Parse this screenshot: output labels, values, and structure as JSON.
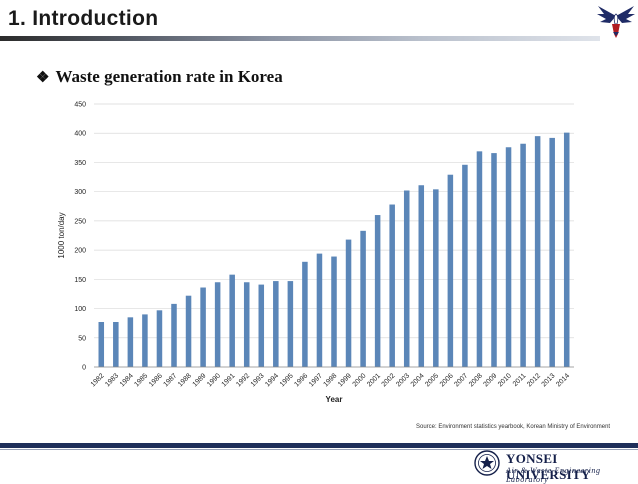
{
  "header": {
    "title": "1. Introduction",
    "logo_icon": "eagle-icon"
  },
  "bullet": {
    "glyph": "❖",
    "text": "Waste generation rate in Korea"
  },
  "chart_data": {
    "type": "bar",
    "title": "",
    "xlabel": "Year",
    "ylabel": "1000 ton/day",
    "ylim": [
      0,
      450
    ],
    "yticks": [
      0,
      50,
      100,
      150,
      200,
      250,
      300,
      350,
      400,
      450
    ],
    "grid": true,
    "bar_color": "#5b86b8",
    "categories": [
      "1982",
      "1983",
      "1984",
      "1985",
      "1986",
      "1987",
      "1988",
      "1989",
      "1990",
      "1991",
      "1992",
      "1993",
      "1994",
      "1995",
      "1996",
      "1997",
      "1998",
      "1999",
      "2000",
      "2001",
      "2002",
      "2003",
      "2004",
      "2005",
      "2006",
      "2007",
      "2008",
      "2009",
      "2010",
      "2011",
      "2012",
      "2013",
      "2014"
    ],
    "values": [
      77,
      77,
      85,
      90,
      97,
      108,
      122,
      136,
      145,
      158,
      145,
      141,
      147,
      147,
      180,
      194,
      189,
      218,
      233,
      260,
      278,
      302,
      311,
      304,
      329,
      346,
      369,
      366,
      376,
      382,
      395,
      392,
      401
    ]
  },
  "source": "Source: Environment statistics yearbook, Korean Ministry of Environment",
  "footer": {
    "university": "YONSEI UNIVERSITY",
    "lab": "Air & Waste Engineering Laboratory",
    "seal_icon": "university-seal-icon"
  }
}
